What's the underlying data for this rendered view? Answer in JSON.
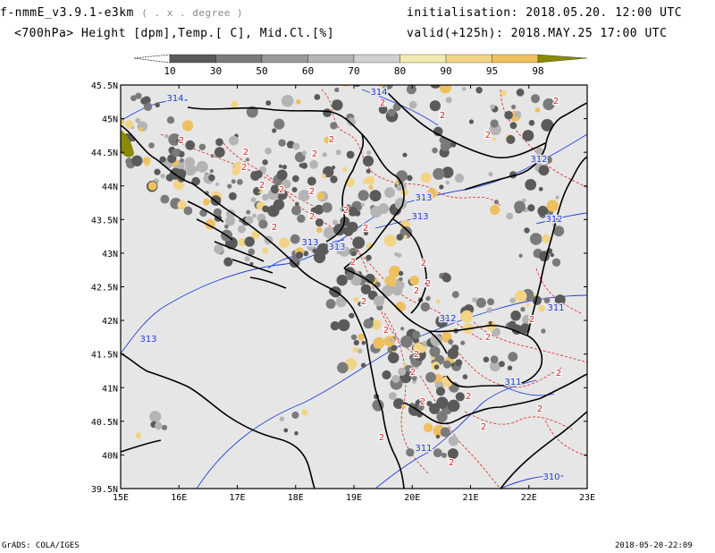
{
  "header": {
    "model": "f-nmmE_v3.9.1-e3km",
    "grid_note": "( . x . degree )",
    "fields": "<700hPa> Height [dpm],Temp.[ C], Mid.Cl.[%]",
    "init_label": "initialisation:",
    "init_value": "2018.05.20.  12:00 UTC",
    "valid_label": "valid(+125h):",
    "valid_value": "2018.MAY.25  17:00 UTC"
  },
  "colorbar": {
    "labels": [
      "10",
      "30",
      "50",
      "60",
      "70",
      "80",
      "90",
      "95",
      "98"
    ],
    "colors": [
      "#5a5a5a",
      "#7a7a7a",
      "#9a9a9a",
      "#b4b4b4",
      "#d0d0d0",
      "#f0eab0",
      "#f2d486",
      "#eec060",
      "#e6a820",
      "#8a8a00"
    ]
  },
  "map": {
    "lon_labels": [
      "15E",
      "16E",
      "17E",
      "18E",
      "19E",
      "20E",
      "21E",
      "22E",
      "23E"
    ],
    "lat_labels": [
      "45.5N",
      "45N",
      "44.5N",
      "44N",
      "43.5N",
      "43N",
      "42.5N",
      "42N",
      "41.5N",
      "41N",
      "40.5N",
      "40N",
      "39.5N"
    ],
    "height_contour_labels": [
      "314",
      "314",
      "313",
      "313",
      "313",
      "313",
      "313",
      "312",
      "312",
      "312",
      "311",
      "311",
      "311",
      "310"
    ],
    "temp_contour_label": "2",
    "colors": {
      "land_sea": "#e6e6e6",
      "height_contour": "#1f3fd6",
      "temp_contour": "#e02020",
      "coast": "#000000"
    }
  },
  "footer": {
    "left": "GrADS: COLA/IGES",
    "right": "2018-05-20-22:09"
  }
}
